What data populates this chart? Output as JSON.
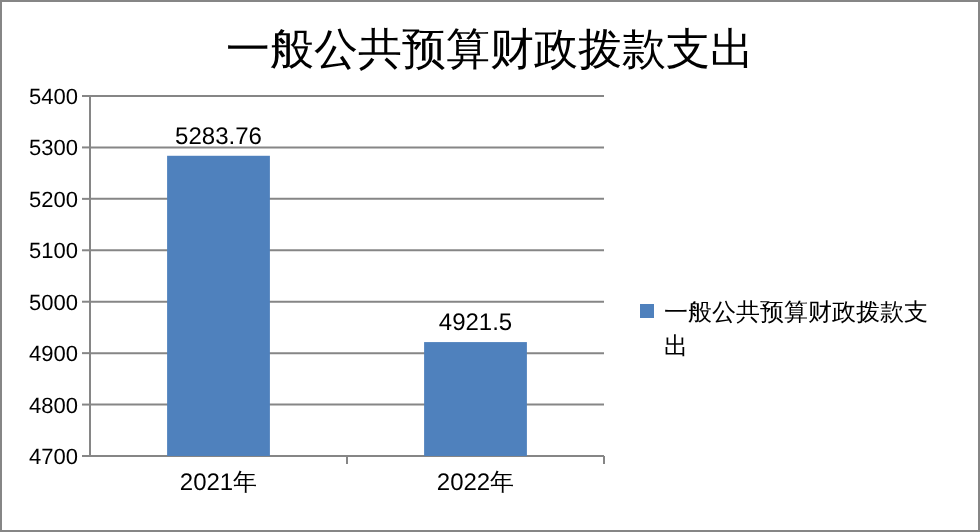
{
  "chart_data": {
    "type": "bar",
    "title": "一般公共预算财政拨款支出",
    "categories": [
      "2021年",
      "2022年"
    ],
    "series": [
      {
        "name": "一般公共预算财政拨款支出",
        "color": "#4f81bd",
        "values": [
          5283.76,
          4921.5
        ]
      }
    ],
    "ylim": [
      4700,
      5400
    ],
    "yticks": [
      4700,
      4800,
      4900,
      5000,
      5100,
      5200,
      5300,
      5400
    ],
    "grid": "y",
    "legend": "right",
    "data_labels": true
  }
}
